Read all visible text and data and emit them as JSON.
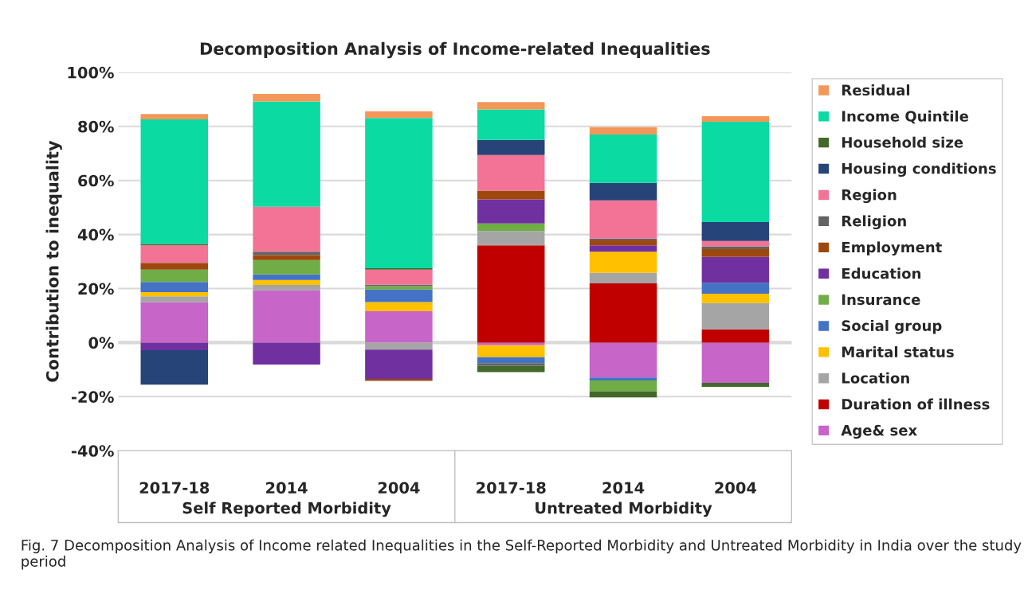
{
  "chart_data": {
    "type": "bar",
    "stacked": true,
    "title": "Decomposition Analysis of Income-related Inequalities",
    "ylabel": "Contribution to inequality",
    "categories": [
      "2017-18",
      "2014",
      "2004",
      "2017-18",
      "2014",
      "2004"
    ],
    "series": [
      {
        "name": "Age& sex",
        "color": "#c765c9",
        "values": [
          15.0,
          19.3,
          11.6,
          -1.0,
          -12.9,
          -14.9
        ]
      },
      {
        "name": "Duration of illness",
        "color": "#c00000",
        "values": [
          null,
          null,
          null,
          36.0,
          21.9,
          4.9
        ]
      },
      {
        "name": "Location",
        "color": "#a5a5a5",
        "values": [
          2.1,
          2.0,
          -2.6,
          5.3,
          3.9,
          9.7
        ]
      },
      {
        "name": "Marital status",
        "color": "#ffc000",
        "values": [
          1.6,
          1.9,
          3.4,
          -4.4,
          7.8,
          3.5
        ]
      },
      {
        "name": "Social group",
        "color": "#4472c4",
        "values": [
          3.7,
          2.0,
          4.6,
          -2.2,
          -1.1,
          4.0
        ]
      },
      {
        "name": "Insurance",
        "color": "#70ad47",
        "values": [
          4.6,
          5.3,
          1.3,
          2.8,
          -4.1,
          null
        ]
      },
      {
        "name": "Education",
        "color": "#7030a0",
        "values": [
          -2.8,
          -8.1,
          -10.8,
          8.9,
          2.4,
          9.6
        ]
      },
      {
        "name": "Employment",
        "color": "#9e480e",
        "values": [
          2.5,
          1.9,
          -0.8,
          3.2,
          1.8,
          2.9
        ]
      },
      {
        "name": "Religion",
        "color": "#636363",
        "values": [
          null,
          1.2,
          0.5,
          -1.0,
          0.7,
          1.0
        ]
      },
      {
        "name": "Region",
        "color": "#f37396",
        "values": [
          6.5,
          16.7,
          5.6,
          13.2,
          14.1,
          2.0
        ]
      },
      {
        "name": "Housing conditions",
        "color": "#264478",
        "values": [
          -12.8,
          null,
          null,
          5.6,
          6.5,
          7.0
        ]
      },
      {
        "name": "Household size",
        "color": "#43682b",
        "values": [
          0.5,
          null,
          0.5,
          -2.3,
          -2.2,
          -1.5
        ]
      },
      {
        "name": "Income Quintile",
        "color": "#0bdaa2",
        "values": [
          46.1,
          38.9,
          55.6,
          11.3,
          17.9,
          37.1
        ]
      },
      {
        "name": "Residual",
        "color": "#f4975a",
        "values": [
          2.0,
          2.8,
          2.5,
          2.7,
          2.7,
          2.1
        ]
      }
    ],
    "ylim": [
      -40,
      100
    ],
    "yticks": [
      {
        "value": -40,
        "label": "-40%"
      },
      {
        "value": -20,
        "label": "-20%"
      },
      {
        "value": 0,
        "label": "0%"
      },
      {
        "value": 20,
        "label": "20%"
      },
      {
        "value": 40,
        "label": "40%"
      },
      {
        "value": 60,
        "label": "60%"
      },
      {
        "value": 80,
        "label": "80%"
      },
      {
        "value": 100,
        "label": "100%"
      }
    ],
    "grid": "y",
    "legend": "right",
    "annotations": [
      "Self Reported Morbidity",
      "Untreated Morbidity",
      "Fig. 7 Decomposition Analysis of Income related Inequalities in the Self-Reported Morbidity and Untreated Morbidity in India over the study period"
    ]
  }
}
